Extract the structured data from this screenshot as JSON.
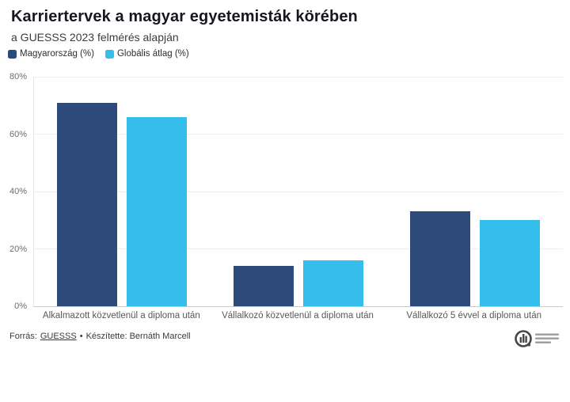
{
  "header": {
    "title": "Karriertervek a magyar egyetemisták körében",
    "subtitle": "a GUESSS 2023 felmérés alapján"
  },
  "chart_data": {
    "type": "bar",
    "title": "Karriertervek a magyar egyetemisták körében",
    "subtitle": "a GUESSS 2023 felmérés alapján",
    "categories": [
      "Alkalmazott közvetlenül a diploma után",
      "Vállalkozó közvetlenül a diploma után",
      "Vállalkozó 5 évvel a diploma után"
    ],
    "series": [
      {
        "name": "Magyarország (%)",
        "color": "#2E4A7B",
        "values": [
          71,
          14,
          33
        ]
      },
      {
        "name": "Globális átlag (%)",
        "color": "#35BDEC",
        "values": [
          66,
          16,
          30
        ]
      }
    ],
    "xlabel": "",
    "ylabel": "",
    "ylim": [
      0,
      80
    ],
    "yticks": [
      "0%",
      "20%",
      "40%",
      "60%",
      "80%"
    ],
    "grid": true,
    "legend_position": "top-left"
  },
  "colors": {
    "hungary_bar": "#2E4A7B",
    "global_bar": "#35BDEC",
    "gridline": "#ededed",
    "baseline": "#c9c9c9",
    "title_text": "#17171f",
    "muted_text": "#6d6d6d"
  },
  "footer": {
    "source_prefix": "Forrás:",
    "source_link": "GUESSS",
    "separator": "•",
    "credit": "Készítette: Bernáth Marcell"
  }
}
